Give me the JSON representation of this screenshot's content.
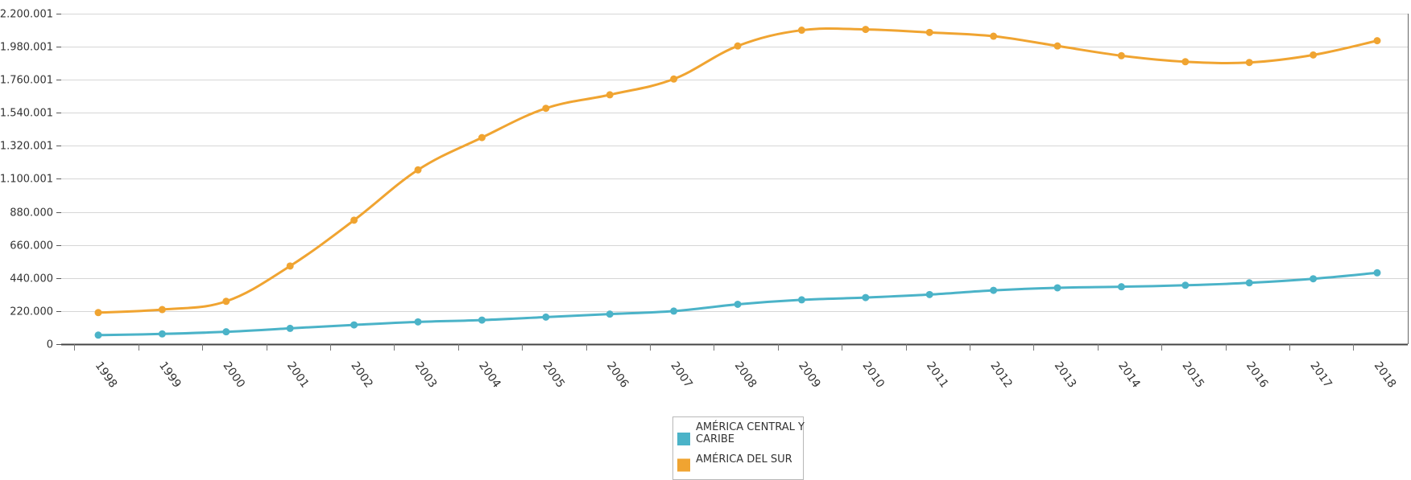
{
  "header": {
    "title_fragment": ""
  },
  "chart_data": {
    "type": "line",
    "title": "",
    "xlabel": "",
    "ylabel": "",
    "categories": [
      "1998",
      "1999",
      "2000",
      "2001",
      "2002",
      "2003",
      "2004",
      "2005",
      "2006",
      "2007",
      "2008",
      "2009",
      "2010",
      "2011",
      "2012",
      "2013",
      "2014",
      "2015",
      "2016",
      "2017",
      "2018"
    ],
    "y_ticks": [
      0,
      220000,
      440000,
      660000,
      880000,
      1100001,
      1320001,
      1540001,
      1760001,
      1980001,
      2200001
    ],
    "y_tick_labels": [
      "0",
      "220.000",
      "440.000",
      "660.000",
      "880.000",
      "1.100.001",
      "1.320.001",
      "1.540.001",
      "1.760.001",
      "1.980.001",
      "2.200.001"
    ],
    "ylim": [
      0,
      2200001
    ],
    "grid": true,
    "legend_position": "bottom-center",
    "series": [
      {
        "name": "AMÉRICA CENTRAL Y CARIBE",
        "legend_lines": [
          "AMÉRICA CENTRAL Y",
          "CARIBE"
        ],
        "color": "#4bb3c8",
        "values": [
          60000,
          68000,
          82000,
          105000,
          128000,
          148000,
          160000,
          180000,
          200000,
          220000,
          265000,
          295000,
          310000,
          330000,
          358000,
          375000,
          382000,
          392000,
          408000,
          435000,
          475000
        ]
      },
      {
        "name": "AMÉRICA DEL SUR",
        "legend_lines": [
          "AMÉRICA DEL SUR"
        ],
        "color": "#f0a431",
        "values": [
          210000,
          230000,
          285000,
          520000,
          825000,
          1160000,
          1375000,
          1570000,
          1660000,
          1765000,
          1985000,
          2090000,
          2095000,
          2075000,
          2050000,
          1985000,
          1920000,
          1880000,
          1875000,
          1925000,
          2020000
        ]
      }
    ]
  }
}
